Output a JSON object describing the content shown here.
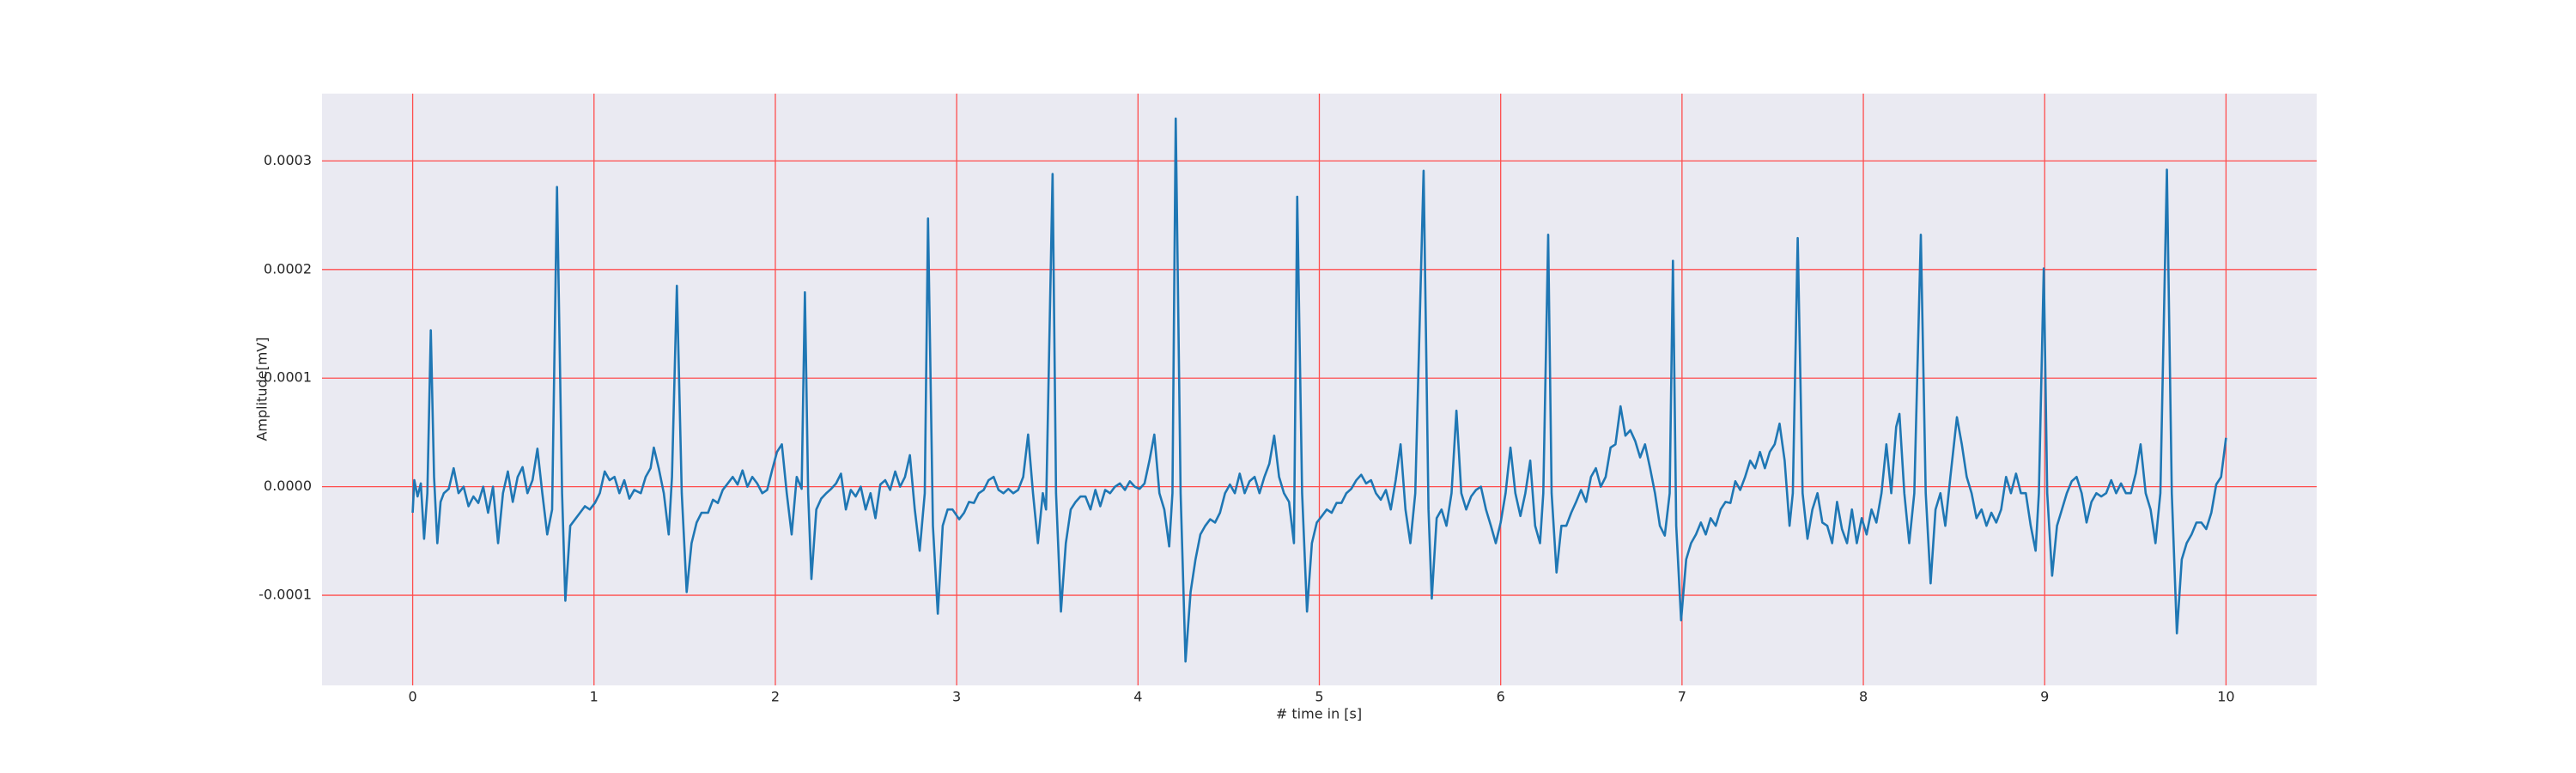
{
  "chart_data": {
    "type": "line",
    "xlabel": "# time in [s]",
    "ylabel": "Amplitude[mV]",
    "color": "#1f77b4",
    "grid": true,
    "grid_color": "#ff4d4d",
    "background": "#eaeaf2",
    "xlim": [
      -0.5,
      10.5
    ],
    "xticks": [
      0,
      1,
      2,
      3,
      4,
      5,
      6,
      7,
      8,
      9,
      10
    ],
    "ylim": [
      -0.000183,
      0.000362
    ],
    "yticks": [
      -0.0001,
      {
        "value": 0,
        "label": "0.0000"
      },
      0.0001,
      0.0002,
      0.0003
    ],
    "x": [
      0,
      0.009,
      0.027,
      0.045,
      0.063,
      0.081,
      0.1,
      0.118,
      0.136,
      0.154,
      0.172,
      0.199,
      0.226,
      0.253,
      0.281,
      0.308,
      0.335,
      0.362,
      0.389,
      0.416,
      0.443,
      0.471,
      0.498,
      0.525,
      0.552,
      0.579,
      0.606,
      0.633,
      0.661,
      0.688,
      0.715,
      0.742,
      0.769,
      0.796,
      0.824,
      0.842,
      0.869,
      0.896,
      0.923,
      0.95,
      0.977,
      1.005,
      1.032,
      1.059,
      1.086,
      1.113,
      1.14,
      1.167,
      1.195,
      1.222,
      1.258,
      1.285,
      1.312,
      1.33,
      1.357,
      1.385,
      1.412,
      1.43,
      1.457,
      1.484,
      1.511,
      1.538,
      1.566,
      1.593,
      1.629,
      1.656,
      1.683,
      1.71,
      1.738,
      1.765,
      1.792,
      1.819,
      1.846,
      1.873,
      1.9,
      1.928,
      1.955,
      1.982,
      2.009,
      2.036,
      2.063,
      2.09,
      2.118,
      2.145,
      2.163,
      2.181,
      2.199,
      2.226,
      2.253,
      2.281,
      2.308,
      2.335,
      2.362,
      2.389,
      2.416,
      2.443,
      2.471,
      2.498,
      2.525,
      2.552,
      2.579,
      2.606,
      2.633,
      2.661,
      2.688,
      2.715,
      2.742,
      2.769,
      2.796,
      2.824,
      2.842,
      2.869,
      2.896,
      2.923,
      2.95,
      2.977,
      3.014,
      3.041,
      3.068,
      3.095,
      3.122,
      3.149,
      3.176,
      3.204,
      3.231,
      3.258,
      3.285,
      3.312,
      3.339,
      3.367,
      3.394,
      3.421,
      3.448,
      3.475,
      3.493,
      3.529,
      3.548,
      3.575,
      3.602,
      3.629,
      3.656,
      3.683,
      3.71,
      3.738,
      3.765,
      3.792,
      3.819,
      3.846,
      3.873,
      3.9,
      3.928,
      3.955,
      3.982,
      4.009,
      4.036,
      4.063,
      4.09,
      4.118,
      4.145,
      4.172,
      4.19,
      4.208,
      4.235,
      4.262,
      4.29,
      4.317,
      4.344,
      4.371,
      4.398,
      4.425,
      4.452,
      4.48,
      4.507,
      4.534,
      4.561,
      4.588,
      4.615,
      4.643,
      4.67,
      4.697,
      4.724,
      4.751,
      4.778,
      4.805,
      4.833,
      4.86,
      4.878,
      4.905,
      4.932,
      4.959,
      4.986,
      5.014,
      5.041,
      5.068,
      5.095,
      5.122,
      5.149,
      5.176,
      5.204,
      5.231,
      5.258,
      5.285,
      5.312,
      5.339,
      5.367,
      5.394,
      5.421,
      5.448,
      5.475,
      5.502,
      5.529,
      5.575,
      5.602,
      5.62,
      5.647,
      5.674,
      5.701,
      5.729,
      5.756,
      5.783,
      5.81,
      5.837,
      5.864,
      5.891,
      5.919,
      5.946,
      5.973,
      6,
      6.027,
      6.054,
      6.081,
      6.109,
      6.136,
      6.163,
      6.19,
      6.217,
      6.235,
      6.262,
      6.281,
      6.308,
      6.335,
      6.362,
      6.389,
      6.416,
      6.443,
      6.471,
      6.498,
      6.525,
      6.552,
      6.579,
      6.606,
      6.633,
      6.661,
      6.688,
      6.715,
      6.742,
      6.769,
      6.796,
      6.824,
      6.851,
      6.878,
      6.905,
      6.932,
      6.95,
      6.968,
      6.995,
      7.023,
      7.05,
      7.077,
      7.104,
      7.131,
      7.158,
      7.186,
      7.213,
      7.24,
      7.267,
      7.294,
      7.321,
      7.348,
      7.376,
      7.403,
      7.43,
      7.457,
      7.484,
      7.511,
      7.538,
      7.566,
      7.593,
      7.611,
      7.638,
      7.665,
      7.692,
      7.719,
      7.747,
      7.774,
      7.801,
      7.828,
      7.855,
      7.882,
      7.91,
      7.937,
      7.964,
      7.991,
      8.018,
      8.045,
      8.072,
      8.1,
      8.127,
      8.154,
      8.181,
      8.199,
      8.226,
      8.253,
      8.281,
      8.317,
      8.344,
      8.371,
      8.398,
      8.425,
      8.452,
      8.48,
      8.516,
      8.543,
      8.57,
      8.597,
      8.624,
      8.652,
      8.679,
      8.706,
      8.733,
      8.76,
      8.787,
      8.814,
      8.842,
      8.869,
      8.896,
      8.923,
      8.95,
      8.968,
      8.995,
      9.014,
      9.041,
      9.068,
      9.095,
      9.122,
      9.149,
      9.176,
      9.204,
      9.231,
      9.258,
      9.285,
      9.312,
      9.339,
      9.367,
      9.394,
      9.421,
      9.448,
      9.475,
      9.502,
      9.529,
      9.557,
      9.584,
      9.611,
      9.638,
      9.674,
      9.701,
      9.729,
      9.756,
      9.783,
      9.81,
      9.837,
      9.864,
      9.891,
      9.919,
      9.946,
      9.973,
      10
    ],
    "values": [
      -2.4e-05,
      6e-06,
      -9e-06,
      3e-06,
      -4.8e-05,
      -6e-06,
      0.000144,
      9e-06,
      -5.2e-05,
      -1.4e-05,
      -6e-06,
      -2e-06,
      1.7e-05,
      -6e-06,
      0,
      -1.8e-05,
      -9e-06,
      -1.5e-05,
      0,
      -2.4e-05,
      0,
      -5.2e-05,
      -6e-06,
      1.4e-05,
      -1.4e-05,
      9e-06,
      1.8e-05,
      -6e-06,
      6e-06,
      3.5e-05,
      -6e-06,
      -4.4e-05,
      -2.1e-05,
      0.000276,
      -6e-06,
      -0.000105,
      -3.6e-05,
      -3e-05,
      -2.4e-05,
      -1.8e-05,
      -2.1e-05,
      -1.5e-05,
      -6e-06,
      1.4e-05,
      6e-06,
      9e-06,
      -6e-06,
      6e-06,
      -1.1e-05,
      -3e-06,
      -6e-06,
      9e-06,
      1.7e-05,
      3.6e-05,
      1.7e-05,
      -6e-06,
      -4.4e-05,
      9e-06,
      0.000185,
      -6e-06,
      -9.7e-05,
      -5.2e-05,
      -3.3e-05,
      -2.4e-05,
      -2.4e-05,
      -1.2e-05,
      -1.5e-05,
      -3e-06,
      3e-06,
      9e-06,
      2e-06,
      1.5e-05,
      0,
      9e-06,
      3e-06,
      -6e-06,
      -3e-06,
      1.5e-05,
      3.2e-05,
      3.9e-05,
      -6e-06,
      -4.4e-05,
      9e-06,
      -2e-06,
      0.000179,
      -6e-06,
      -8.5e-05,
      -2.1e-05,
      -1.1e-05,
      -6e-06,
      -2e-06,
      3e-06,
      1.2e-05,
      -2.1e-05,
      -3e-06,
      -9e-06,
      0,
      -2.1e-05,
      -6e-06,
      -2.9e-05,
      2e-06,
      6e-06,
      -3e-06,
      1.4e-05,
      0,
      9e-06,
      2.9e-05,
      -2.1e-05,
      -5.9e-05,
      -6e-06,
      0.000247,
      -3.6e-05,
      -0.000117,
      -3.6e-05,
      -2.1e-05,
      -2.1e-05,
      -3e-05,
      -2.4e-05,
      -1.4e-05,
      -1.5e-05,
      -6e-06,
      -3e-06,
      6e-06,
      9e-06,
      -3e-06,
      -6e-06,
      -2e-06,
      -6e-06,
      -3e-06,
      9e-06,
      4.8e-05,
      -6e-06,
      -5.2e-05,
      -6e-06,
      -2.1e-05,
      0.000288,
      -6e-06,
      -0.000115,
      -5.2e-05,
      -2.1e-05,
      -1.4e-05,
      -9e-06,
      -9e-06,
      -2.1e-05,
      -3e-06,
      -1.8e-05,
      -3e-06,
      -6e-06,
      0,
      3e-06,
      -3e-06,
      5e-06,
      0,
      -2e-06,
      3e-06,
      2.4e-05,
      4.8e-05,
      -6e-06,
      -2.1e-05,
      -5.5e-05,
      -6e-06,
      0.000339,
      -6e-06,
      -0.000161,
      -9.7e-05,
      -6.7e-05,
      -4.4e-05,
      -3.6e-05,
      -3e-05,
      -3.3e-05,
      -2.4e-05,
      -6e-06,
      2e-06,
      -6e-06,
      1.2e-05,
      -6e-06,
      5e-06,
      9e-06,
      -6e-06,
      9e-06,
      2.1e-05,
      4.7e-05,
      9e-06,
      -6e-06,
      -1.4e-05,
      -5.2e-05,
      0.000267,
      -6e-06,
      -0.000115,
      -5.2e-05,
      -3.3e-05,
      -2.7e-05,
      -2.1e-05,
      -2.4e-05,
      -1.5e-05,
      -1.5e-05,
      -6e-06,
      -2e-06,
      6e-06,
      1.1e-05,
      3e-06,
      6e-06,
      -6e-06,
      -1.2e-05,
      -3e-06,
      -2.1e-05,
      6e-06,
      3.9e-05,
      -2.1e-05,
      -5.2e-05,
      -6e-06,
      0.000291,
      -2.1e-05,
      -0.000103,
      -2.9e-05,
      -2.1e-05,
      -3.6e-05,
      -6e-06,
      7e-05,
      -6e-06,
      -2.1e-05,
      -9e-06,
      -3e-06,
      0,
      -2.1e-05,
      -3.6e-05,
      -5.2e-05,
      -3.3e-05,
      -6e-06,
      3.6e-05,
      -6e-06,
      -2.7e-05,
      -6e-06,
      2.4e-05,
      -3.6e-05,
      -5.2e-05,
      -6e-06,
      0.000232,
      -6e-06,
      -7.9e-05,
      -3.6e-05,
      -3.6e-05,
      -2.4e-05,
      -1.4e-05,
      -3e-06,
      -1.4e-05,
      9e-06,
      1.7e-05,
      0,
      9e-06,
      3.6e-05,
      3.9e-05,
      7.4e-05,
      4.7e-05,
      5.2e-05,
      4.2e-05,
      2.7e-05,
      3.9e-05,
      1.7e-05,
      -6e-06,
      -3.6e-05,
      -4.5e-05,
      -6e-06,
      0.000208,
      -3.6e-05,
      -0.000123,
      -6.7e-05,
      -5.2e-05,
      -4.4e-05,
      -3.3e-05,
      -4.4e-05,
      -2.9e-05,
      -3.6e-05,
      -2.1e-05,
      -1.4e-05,
      -1.5e-05,
      5e-06,
      -3e-06,
      9e-06,
      2.4e-05,
      1.7e-05,
      3.2e-05,
      1.7e-05,
      3.2e-05,
      3.9e-05,
      5.8e-05,
      2.4e-05,
      -3.6e-05,
      -6e-06,
      0.000229,
      -6e-06,
      -4.8e-05,
      -2.1e-05,
      -6e-06,
      -3.3e-05,
      -3.6e-05,
      -5.2e-05,
      -1.4e-05,
      -3.9e-05,
      -5.2e-05,
      -2.1e-05,
      -5.2e-05,
      -2.9e-05,
      -4.4e-05,
      -2.1e-05,
      -3.3e-05,
      -6e-06,
      3.9e-05,
      -6e-06,
      5.5e-05,
      6.7e-05,
      -6e-06,
      -5.2e-05,
      -6e-06,
      0.000232,
      -6e-06,
      -8.9e-05,
      -2.1e-05,
      -6e-06,
      -3.6e-05,
      9e-06,
      6.4e-05,
      3.9e-05,
      9e-06,
      -6e-06,
      -2.9e-05,
      -2.1e-05,
      -3.6e-05,
      -2.4e-05,
      -3.3e-05,
      -2.1e-05,
      9e-06,
      -6e-06,
      1.2e-05,
      -6e-06,
      -6e-06,
      -3.6e-05,
      -5.9e-05,
      -6e-06,
      0.000201,
      -6e-06,
      -8.2e-05,
      -3.6e-05,
      -2.1e-05,
      -6e-06,
      5e-06,
      9e-06,
      -6e-06,
      -3.3e-05,
      -1.4e-05,
      -6e-06,
      -9e-06,
      -6e-06,
      6e-06,
      -6e-06,
      3e-06,
      -6e-06,
      -6e-06,
      1.2e-05,
      3.9e-05,
      -6e-06,
      -2.1e-05,
      -5.2e-05,
      -6e-06,
      0.000292,
      -6e-06,
      -0.000135,
      -6.7e-05,
      -5.2e-05,
      -4.4e-05,
      -3.3e-05,
      -3.3e-05,
      -3.9e-05,
      -2.4e-05,
      2e-06,
      9e-06,
      4.5e-05
    ]
  }
}
